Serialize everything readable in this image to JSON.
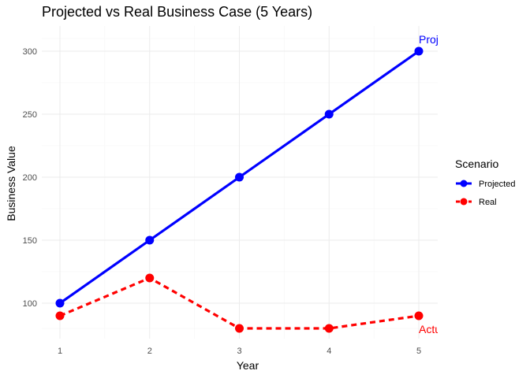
{
  "chart_data": {
    "type": "line",
    "title": "Projected vs Real Business Case (5 Years)",
    "xlabel": "Year",
    "ylabel": "Business Value",
    "x": [
      1,
      2,
      3,
      4,
      5
    ],
    "x_ticks": [
      "1",
      "2",
      "3",
      "4",
      "5"
    ],
    "y_ticks": [
      "100",
      "150",
      "200",
      "250",
      "300"
    ],
    "xlim": [
      1,
      5
    ],
    "ylim": [
      80,
      300
    ],
    "legend": {
      "title": "Scenario",
      "position": "right"
    },
    "series": [
      {
        "name": "Projected",
        "values": [
          100,
          150,
          200,
          250,
          300
        ],
        "color": "#0000ff",
        "style": "solid"
      },
      {
        "name": "Real",
        "values": [
          90,
          120,
          80,
          80,
          90
        ],
        "color": "#ff0000",
        "style": "dashed"
      }
    ],
    "annotations": [
      {
        "text": "Projected",
        "series": "Projected",
        "x": 5,
        "color": "#0000ff"
      },
      {
        "text": "Actual",
        "series": "Real",
        "x": 5,
        "color": "#ff0000"
      }
    ]
  }
}
